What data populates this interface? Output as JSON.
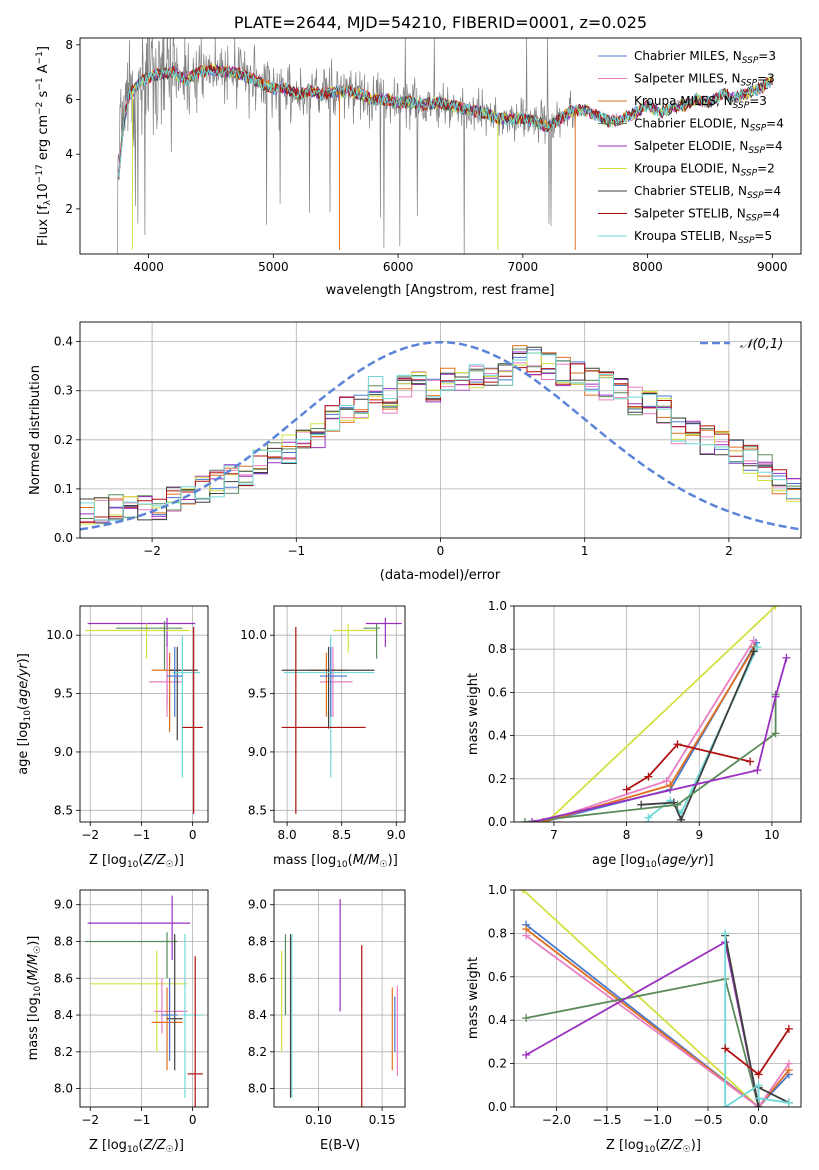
{
  "title": "PLATE=2644, MJD=54210, FIBERID=0001, z=0.025",
  "colors": {
    "chabrier_miles": "#4878cf",
    "salpeter_miles": "#e97fc4",
    "kroupa_miles": "#e07020",
    "chabrier_elodie": "#5a8a5a",
    "salpeter_elodie": "#9b30c0",
    "kroupa_elodie": "#d4e040",
    "chabrier_stelib": "#404040",
    "salpeter_stelib": "#b01010",
    "kroupa_stelib": "#70d8d8",
    "data": "#808080",
    "gauss": "#5b84d8"
  },
  "chart_data": [
    {
      "type": "line",
      "xlabel": "wavelength [Angstrom, rest frame]",
      "ylabel": "Flux [f_λ10^-17 erg cm^-2 s^-1 A^-1]",
      "xticks": [
        4000,
        5000,
        6000,
        7000,
        8000,
        9000
      ],
      "yticks": [
        2,
        4,
        6,
        8
      ],
      "xlim": [
        3450,
        9230
      ],
      "ylim": [
        0.35,
        8.25
      ],
      "legend_position": "upper-right",
      "series": [
        {
          "name": "Chabrier MILES, N_SSP=3",
          "color_key": "chabrier_miles"
        },
        {
          "name": "Salpeter MILES, N_SSP=3",
          "color_key": "salpeter_miles"
        },
        {
          "name": "Kroupa MILES, N_SSP=3",
          "color_key": "kroupa_miles"
        },
        {
          "name": "Chabrier ELODIE, N_SSP=4",
          "color_key": "chabrier_elodie"
        },
        {
          "name": "Salpeter ELODIE, N_SSP=4",
          "color_key": "salpeter_elodie"
        },
        {
          "name": "Kroupa ELODIE, N_SSP=2",
          "color_key": "kroupa_elodie"
        },
        {
          "name": "Chabrier STELIB, N_SSP=4",
          "color_key": "chabrier_stelib"
        },
        {
          "name": "Salpeter STELIB, N_SSP=4",
          "color_key": "salpeter_stelib"
        },
        {
          "name": "Kroupa STELIB, N_SSP=5",
          "color_key": "kroupa_stelib"
        }
      ],
      "model_continuum": [
        [
          3750,
          2.8
        ],
        [
          3800,
          5.2
        ],
        [
          3850,
          6.2
        ],
        [
          3950,
          6.7
        ],
        [
          4050,
          6.9
        ],
        [
          4200,
          7.0
        ],
        [
          4300,
          6.7
        ],
        [
          4400,
          7.0
        ],
        [
          4500,
          7.1
        ],
        [
          4600,
          7.0
        ],
        [
          4700,
          7.0
        ],
        [
          4800,
          6.8
        ],
        [
          4900,
          6.6
        ],
        [
          5000,
          6.4
        ],
        [
          5100,
          6.4
        ],
        [
          5200,
          6.2
        ],
        [
          5300,
          6.3
        ],
        [
          5400,
          6.2
        ],
        [
          5500,
          6.3
        ],
        [
          5600,
          6.3
        ],
        [
          5700,
          6.2
        ],
        [
          5800,
          6.0
        ],
        [
          5900,
          6.0
        ],
        [
          6000,
          5.9
        ],
        [
          6100,
          5.9
        ],
        [
          6200,
          5.8
        ],
        [
          6300,
          5.9
        ],
        [
          6400,
          5.8
        ],
        [
          6500,
          5.7
        ],
        [
          6600,
          5.6
        ],
        [
          6700,
          5.5
        ],
        [
          6800,
          5.3
        ],
        [
          6900,
          5.3
        ],
        [
          7000,
          5.3
        ],
        [
          7100,
          5.2
        ],
        [
          7200,
          5.0
        ],
        [
          7300,
          5.3
        ],
        [
          7400,
          5.6
        ],
        [
          7500,
          5.6
        ],
        [
          7600,
          5.4
        ],
        [
          7700,
          5.2
        ],
        [
          7800,
          5.3
        ],
        [
          7900,
          5.5
        ],
        [
          8000,
          5.8
        ],
        [
          8100,
          5.5
        ],
        [
          8200,
          5.7
        ],
        [
          8300,
          5.8
        ],
        [
          8400,
          6.0
        ],
        [
          8500,
          5.9
        ],
        [
          8600,
          6.2
        ],
        [
          8700,
          6.1
        ],
        [
          8800,
          6.2
        ],
        [
          8900,
          6.4
        ],
        [
          9000,
          6.7
        ]
      ]
    },
    {
      "type": "histogram",
      "xlabel": "(data-model)/error",
      "ylabel": "Normed distribution",
      "xticks": [
        -2,
        -1,
        0,
        1,
        2
      ],
      "yticks": [
        0.0,
        0.1,
        0.2,
        0.3,
        0.4
      ],
      "xlim": [
        -2.5,
        2.5
      ],
      "ylim": [
        0,
        0.44
      ],
      "legend": "𝒩(0,1)",
      "legend_position": "upper-right",
      "bin_width": 0.1,
      "bin_start": -2.5,
      "reference_counts": [
        0.05,
        0.055,
        0.06,
        0.07,
        0.065,
        0.06,
        0.08,
        0.09,
        0.1,
        0.11,
        0.12,
        0.13,
        0.15,
        0.17,
        0.18,
        0.19,
        0.21,
        0.24,
        0.26,
        0.27,
        0.3,
        0.28,
        0.31,
        0.33,
        0.3,
        0.32,
        0.31,
        0.33,
        0.32,
        0.33,
        0.37,
        0.36,
        0.35,
        0.34,
        0.33,
        0.32,
        0.31,
        0.3,
        0.28,
        0.27,
        0.26,
        0.22,
        0.21,
        0.2,
        0.19,
        0.17,
        0.16,
        0.14,
        0.12,
        0.1
      ]
    },
    {
      "type": "scatter",
      "xlabel": "Z [log10(Z/Z☉)]",
      "ylabel": "age [log10(age/yr)]",
      "xticks": [
        -2,
        -1,
        0
      ],
      "yticks": [
        8.5,
        9.0,
        9.5,
        10.0
      ],
      "xlim": [
        -2.2,
        0.3
      ],
      "ylim": [
        8.4,
        10.25
      ],
      "points": [
        {
          "c": "salpeter_elodie",
          "x": -0.5,
          "y": 10.1,
          "xl": -2.05,
          "xh": 0.05,
          "yl": 9.4,
          "yh": 10.15
        },
        {
          "c": "kroupa_elodie",
          "x": -0.9,
          "y": 10.04,
          "xl": -2.1,
          "xh": -0.05,
          "yl": 9.8,
          "yh": 10.1
        },
        {
          "c": "chabrier_elodie",
          "x": -0.55,
          "y": 10.06,
          "xl": -1.5,
          "xh": -0.2,
          "yl": 9.7,
          "yh": 10.12
        },
        {
          "c": "salpeter_miles",
          "x": -0.5,
          "y": 9.6,
          "xl": -0.85,
          "xh": -0.2,
          "yl": 9.3,
          "yh": 9.9
        },
        {
          "c": "kroupa_miles",
          "x": -0.45,
          "y": 9.7,
          "xl": -0.8,
          "xh": -0.25,
          "yl": 9.17,
          "yh": 9.85
        },
        {
          "c": "chabrier_stelib",
          "x": -0.3,
          "y": 9.7,
          "xl": -0.45,
          "xh": 0.1,
          "yl": 9.1,
          "yh": 9.9
        },
        {
          "c": "kroupa_stelib",
          "x": -0.2,
          "y": 9.68,
          "xl": -0.4,
          "xh": 0.15,
          "yl": 8.78,
          "yh": 10.0
        },
        {
          "c": "salpeter_stelib",
          "x": 0.02,
          "y": 9.21,
          "xl": -0.2,
          "xh": 0.2,
          "yl": 8.47,
          "yh": 10.07
        },
        {
          "c": "chabrier_miles",
          "x": -0.35,
          "y": 9.65,
          "xl": -0.5,
          "xh": -0.2,
          "yl": 9.3,
          "yh": 9.9
        }
      ]
    },
    {
      "type": "scatter",
      "xlabel": "mass [log10(M/M☉)]",
      "xticks": [
        8.0,
        8.5,
        9.0
      ],
      "yticks": [
        8.5,
        9.0,
        9.5,
        10.0
      ],
      "xlim": [
        7.88,
        9.08
      ],
      "ylim": [
        8.4,
        10.25
      ],
      "points": [
        {
          "c": "salpeter_elodie",
          "x": 8.9,
          "y": 10.1,
          "xl": 8.72,
          "xh": 9.05,
          "yl": 9.9,
          "yh": 10.15
        },
        {
          "c": "kroupa_elodie",
          "x": 8.56,
          "y": 10.04,
          "xl": 8.42,
          "xh": 8.82,
          "yl": 9.85,
          "yh": 10.1
        },
        {
          "c": "chabrier_elodie",
          "x": 8.82,
          "y": 10.06,
          "xl": 8.7,
          "xh": 8.85,
          "yl": 9.8,
          "yh": 10.1
        },
        {
          "c": "salpeter_miles",
          "x": 8.42,
          "y": 9.6,
          "xl": 8.3,
          "xh": 8.6,
          "yl": 9.3,
          "yh": 9.9
        },
        {
          "c": "kroupa_miles",
          "x": 8.36,
          "y": 9.7,
          "xl": 8.2,
          "xh": 8.55,
          "yl": 9.3,
          "yh": 9.85
        },
        {
          "c": "chabrier_stelib",
          "x": 8.38,
          "y": 9.7,
          "xl": 7.95,
          "xh": 8.8,
          "yl": 9.2,
          "yh": 9.9
        },
        {
          "c": "kroupa_stelib",
          "x": 8.4,
          "y": 9.68,
          "xl": 7.97,
          "xh": 8.8,
          "yl": 8.78,
          "yh": 10.0
        },
        {
          "c": "salpeter_stelib",
          "x": 8.08,
          "y": 9.21,
          "xl": 7.95,
          "xh": 8.72,
          "yl": 8.47,
          "yh": 10.07
        },
        {
          "c": "chabrier_miles",
          "x": 8.4,
          "y": 9.65,
          "xl": 8.3,
          "xh": 8.55,
          "yl": 9.3,
          "yh": 9.9
        }
      ]
    },
    {
      "type": "line",
      "xlabel": "age [log10(age/yr)]",
      "ylabel": "mass weight",
      "xticks": [
        7,
        8,
        9,
        10
      ],
      "yticks": [
        0.0,
        0.2,
        0.4,
        0.6,
        0.8,
        1.0
      ],
      "xlim": [
        6.45,
        10.4
      ],
      "ylim": [
        0,
        1.0
      ],
      "series": [
        {
          "c": "kroupa_elodie",
          "x": [
            6.9,
            10.05
          ],
          "y": [
            0.0,
            1.0
          ]
        },
        {
          "c": "chabrier_miles",
          "x": [
            6.85,
            8.6,
            9.78
          ],
          "y": [
            0.0,
            0.15,
            0.83
          ]
        },
        {
          "c": "salpeter_miles",
          "x": [
            6.85,
            8.55,
            9.75
          ],
          "y": [
            0.0,
            0.19,
            0.84
          ]
        },
        {
          "c": "kroupa_miles",
          "x": [
            6.85,
            8.6,
            9.76
          ],
          "y": [
            0.0,
            0.17,
            0.81
          ]
        },
        {
          "c": "kroupa_stelib",
          "x": [
            8.3,
            8.3,
            8.6,
            8.75,
            9.8
          ],
          "y": [
            0.0,
            0.02,
            0.1,
            0.04,
            0.81
          ]
        },
        {
          "c": "chabrier_stelib",
          "x": [
            8.2,
            8.65,
            8.75,
            9.75
          ],
          "y": [
            0.08,
            0.09,
            0.01,
            0.79
          ]
        },
        {
          "c": "salpeter_stelib",
          "x": [
            8.0,
            8.3,
            8.7,
            9.7
          ],
          "y": [
            0.15,
            0.21,
            0.36,
            0.28
          ]
        },
        {
          "c": "chabrier_elodie",
          "x": [
            6.6,
            8.7,
            10.05,
            10.05
          ],
          "y": [
            0.0,
            0.08,
            0.41,
            0.59
          ]
        },
        {
          "c": "salpeter_elodie",
          "x": [
            6.7,
            9.8,
            10.05,
            10.2
          ],
          "y": [
            0.0,
            0.24,
            0.58,
            0.76
          ]
        }
      ]
    },
    {
      "type": "scatter",
      "xlabel": "Z [log10(Z/Z☉)]",
      "ylabel": "mass [log10(M/M☉)]",
      "xticks": [
        -2,
        -1,
        0
      ],
      "yticks": [
        8.0,
        8.2,
        8.4,
        8.6,
        8.8,
        9.0
      ],
      "xlim": [
        -2.2,
        0.3
      ],
      "ylim": [
        7.9,
        9.08
      ],
      "points": [
        {
          "c": "salpeter_elodie",
          "x": -0.4,
          "y": 8.9,
          "xl": -2.05,
          "xh": -0.05,
          "yl": 8.7,
          "yh": 9.05
        },
        {
          "c": "chabrier_elodie",
          "x": -0.5,
          "y": 8.8,
          "xl": -2.1,
          "xh": -0.3,
          "yl": 8.6,
          "yh": 8.85
        },
        {
          "c": "kroupa_elodie",
          "x": -0.7,
          "y": 8.57,
          "xl": -2.0,
          "xh": -0.1,
          "yl": 8.2,
          "yh": 8.75
        },
        {
          "c": "salpeter_miles",
          "x": -0.6,
          "y": 8.42,
          "xl": -0.75,
          "xh": -0.1,
          "yl": 8.3,
          "yh": 8.6
        },
        {
          "c": "kroupa_miles",
          "x": -0.5,
          "y": 8.36,
          "xl": -0.8,
          "xh": -0.2,
          "yl": 8.1,
          "yh": 8.55
        },
        {
          "c": "chabrier_stelib",
          "x": -0.35,
          "y": 8.38,
          "xl": -0.5,
          "xh": -0.2,
          "yl": 8.1,
          "yh": 8.84
        },
        {
          "c": "kroupa_stelib",
          "x": -0.15,
          "y": 8.4,
          "xl": -0.2,
          "xh": 0.2,
          "yl": 7.95,
          "yh": 8.84
        },
        {
          "c": "salpeter_stelib",
          "x": 0.05,
          "y": 8.08,
          "xl": -0.1,
          "xh": 0.2,
          "yl": 7.9,
          "yh": 8.72
        },
        {
          "c": "chabrier_miles",
          "x": -0.45,
          "y": 8.4,
          "xl": -0.6,
          "xh": -0.3,
          "yl": 8.15,
          "yh": 8.6
        }
      ]
    },
    {
      "type": "scatter",
      "xlabel": "E(B-V)",
      "xticks": [
        0.1,
        0.15
      ],
      "yticks": [
        8.0,
        8.2,
        8.4,
        8.6,
        8.8,
        9.0
      ],
      "xlim": [
        0.065,
        0.168
      ],
      "ylim": [
        7.9,
        9.08
      ],
      "points": [
        {
          "c": "kroupa_elodie",
          "x": 0.071,
          "y": 8.5,
          "xl": 0.071,
          "xh": 0.071,
          "yl": 8.2,
          "yh": 8.75
        },
        {
          "c": "chabrier_elodie",
          "x": 0.074,
          "y": 8.6,
          "xl": 0.074,
          "xh": 0.074,
          "yl": 8.4,
          "yh": 8.84
        },
        {
          "c": "kroupa_stelib",
          "x": 0.079,
          "y": 8.4,
          "xl": 0.079,
          "xh": 0.079,
          "yl": 7.95,
          "yh": 8.84
        },
        {
          "c": "chabrier_stelib",
          "x": 0.078,
          "y": 8.4,
          "xl": 0.078,
          "xh": 0.078,
          "yl": 7.95,
          "yh": 8.84
        },
        {
          "c": "salpeter_elodie",
          "x": 0.117,
          "y": 8.7,
          "xl": 0.117,
          "xh": 0.117,
          "yl": 8.42,
          "yh": 9.03
        },
        {
          "c": "salpeter_stelib",
          "x": 0.134,
          "y": 8.3,
          "xl": 0.134,
          "xh": 0.134,
          "yl": 7.9,
          "yh": 8.78
        },
        {
          "c": "kroupa_miles",
          "x": 0.158,
          "y": 8.3,
          "xl": 0.158,
          "xh": 0.158,
          "yl": 8.1,
          "yh": 8.55
        },
        {
          "c": "salpeter_miles",
          "x": 0.162,
          "y": 8.3,
          "xl": 0.162,
          "xh": 0.162,
          "yl": 8.07,
          "yh": 8.56
        },
        {
          "c": "chabrier_miles",
          "x": 0.16,
          "y": 8.35,
          "xl": 0.16,
          "xh": 0.16,
          "yl": 8.2,
          "yh": 8.5
        }
      ]
    },
    {
      "type": "line",
      "xlabel": "Z [log10(Z/Z☉)]",
      "ylabel": "mass weight",
      "xticks": [
        -2.0,
        -1.5,
        -1.0,
        -0.5,
        0.0
      ],
      "yticks": [
        0.0,
        0.2,
        0.4,
        0.6,
        0.8,
        1.0
      ],
      "xlim": [
        -2.42,
        0.42
      ],
      "ylim": [
        0,
        1.0
      ],
      "series": [
        {
          "c": "kroupa_elodie",
          "x": [
            -2.33,
            0.0
          ],
          "y": [
            1.0,
            0.0
          ]
        },
        {
          "c": "chabrier_miles",
          "x": [
            -2.3,
            0.0,
            0.3
          ],
          "y": [
            0.84,
            0.0,
            0.15
          ]
        },
        {
          "c": "kroupa_miles",
          "x": [
            -2.3,
            0.0,
            0.3
          ],
          "y": [
            0.82,
            0.0,
            0.17
          ]
        },
        {
          "c": "salpeter_miles",
          "x": [
            -2.3,
            0.0,
            0.3
          ],
          "y": [
            0.79,
            0.0,
            0.2
          ]
        },
        {
          "c": "chabrier_elodie",
          "x": [
            -2.3,
            -0.33,
            0.0
          ],
          "y": [
            0.41,
            0.59,
            0.0
          ]
        },
        {
          "c": "salpeter_elodie",
          "x": [
            -2.3,
            -0.33,
            0.0
          ],
          "y": [
            0.24,
            0.76,
            0.0
          ]
        },
        {
          "c": "chabrier_stelib",
          "x": [
            -0.33,
            0.0,
            0.0,
            0.3
          ],
          "y": [
            0.79,
            0.0,
            0.09,
            0.02
          ]
        },
        {
          "c": "kroupa_stelib",
          "x": [
            -0.33,
            -0.33,
            0.0,
            0.0,
            0.3
          ],
          "y": [
            0.8,
            0.0,
            0.1,
            0.04,
            0.02
          ]
        },
        {
          "c": "salpeter_stelib",
          "x": [
            -0.33,
            0.0,
            0.3
          ],
          "y": [
            0.27,
            0.15,
            0.36
          ]
        }
      ]
    }
  ]
}
